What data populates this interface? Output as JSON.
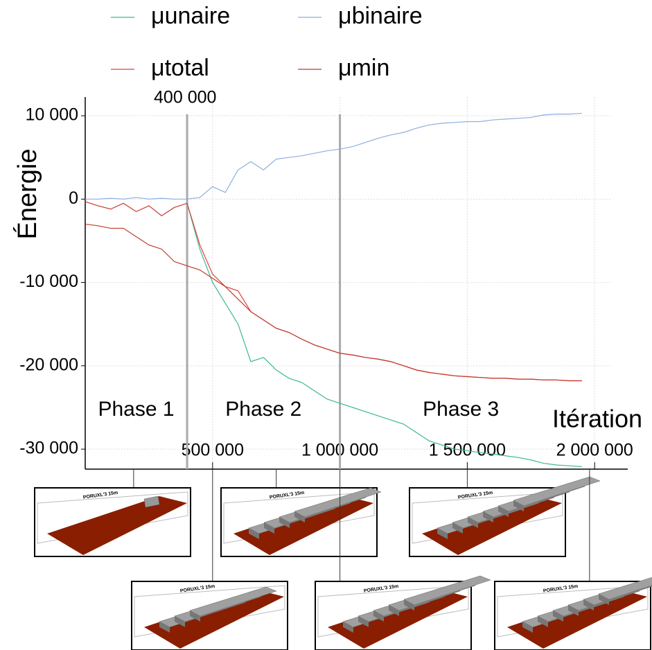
{
  "chart_data": {
    "type": "line",
    "y_label": "Énergie",
    "x_label": "Itération",
    "x": [
      0,
      50000,
      100000,
      150000,
      200000,
      250000,
      300000,
      350000,
      400000,
      450000,
      500000,
      550000,
      600000,
      650000,
      700000,
      750000,
      800000,
      850000,
      900000,
      950000,
      1000000,
      1050000,
      1100000,
      1150000,
      1200000,
      1250000,
      1300000,
      1350000,
      1400000,
      1450000,
      1500000,
      1550000,
      1600000,
      1650000,
      1700000,
      1750000,
      1800000,
      1850000,
      1900000,
      1950000
    ],
    "series": [
      {
        "name": "μunaire",
        "color": "#3cb98c",
        "values": [
          -300,
          -800,
          -1200,
          -500,
          -1500,
          -800,
          -2000,
          -1000,
          -500,
          -6000,
          -10000,
          -12500,
          -15000,
          -19500,
          -19000,
          -20500,
          -21500,
          -22000,
          -23000,
          -24000,
          -24500,
          -25000,
          -25500,
          -26000,
          -26500,
          -27000,
          -28000,
          -29000,
          -29500,
          -30000,
          -30200,
          -30400,
          -30600,
          -30800,
          -31000,
          -31300,
          -31700,
          -31900,
          -32000,
          -32100
        ]
      },
      {
        "name": "μbinaire",
        "color": "#8eaee0",
        "values": [
          0,
          0,
          100,
          0,
          200,
          0,
          100,
          0,
          0,
          200,
          1500,
          800,
          3500,
          4500,
          3500,
          4800,
          5000,
          5200,
          5500,
          5800,
          6000,
          6300,
          6800,
          7300,
          7700,
          8000,
          8500,
          8900,
          9100,
          9200,
          9300,
          9300,
          9500,
          9600,
          9700,
          9800,
          10100,
          10200,
          10200,
          10300
        ]
      },
      {
        "name": "μtotal",
        "color": "#e0413b",
        "values": [
          -300,
          -800,
          -1200,
          -500,
          -1500,
          -800,
          -2000,
          -1000,
          -500,
          -5500,
          -9000,
          -10500,
          -11000,
          -13500,
          -14500,
          -15500,
          -16000,
          -16800,
          -17500,
          -18000,
          -18500,
          -18700,
          -19000,
          -19200,
          -19500,
          -20000,
          -20500,
          -20800,
          -21000,
          -21200,
          -21300,
          -21400,
          -21500,
          -21500,
          -21600,
          -21600,
          -21700,
          -21700,
          -21800,
          -21800
        ]
      },
      {
        "name": "μmin",
        "color": "#c0392b",
        "values": [
          -3000,
          -3200,
          -3500,
          -3500,
          -4500,
          -5500,
          -6000,
          -7500,
          -8000,
          -8500,
          -9500,
          -10500,
          -12000,
          -13500,
          -14500,
          -15500,
          -16000,
          -16800,
          -17500,
          -18000,
          -18500,
          -18700,
          -19000,
          -19200,
          -19500,
          -20000,
          -20500,
          -20800,
          -21000,
          -21200,
          -21300,
          -21400,
          -21500,
          -21500,
          -21600,
          -21600,
          -21700,
          -21700,
          -21800,
          -21800
        ]
      }
    ],
    "xlim": [
      0,
      2130000
    ],
    "ylim": [
      -32400,
      12250
    ],
    "xticks": [
      {
        "value": 500000,
        "label": "500 000"
      },
      {
        "value": 1000000,
        "label": "1 000 000"
      },
      {
        "value": 1500000,
        "label": "1 500 000"
      },
      {
        "value": 2000000,
        "label": "2 000 000"
      }
    ],
    "yticks": [
      {
        "value": 10000,
        "label": "10 000"
      },
      0,
      {
        "value": -10000,
        "label": "-10 000"
      },
      {
        "value": -20000,
        "label": "-20 000"
      },
      {
        "value": -30000,
        "label": "-30 000"
      }
    ],
    "grid": true,
    "vlines": [
      {
        "value": 400000,
        "label": "400 000"
      },
      {
        "value": 1000000
      }
    ],
    "phases": [
      "Phase 1",
      "Phase 2",
      "Phase 3"
    ],
    "snapshots": [
      190000,
      500000,
      750000,
      1000000,
      1500000,
      1980000
    ],
    "snapshot_caption": "PORUXL'3 15m"
  }
}
